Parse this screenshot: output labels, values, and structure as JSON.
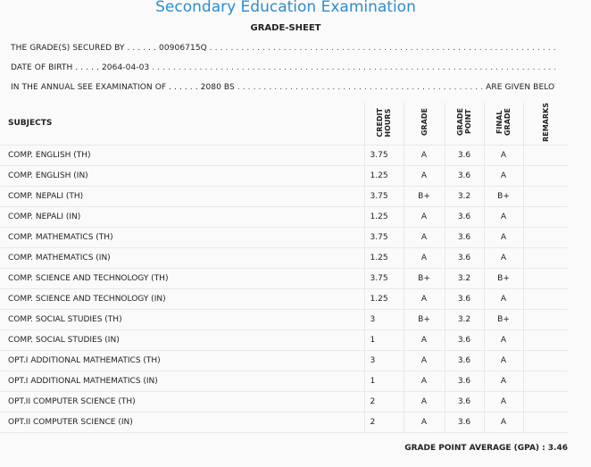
{
  "header": {
    "title": "Secondary Education Examination",
    "subtitle": "GRADE-SHEET"
  },
  "info": {
    "grade_label": "THE GRADE(S) SECURED BY . . . . . .",
    "grade_value": "00906715Q",
    "grade_dots": " . . . . . . . . . . . . . . . . . . . . . . . . . . . . . . . . . . . . . . . . . . . . . . . . . . . . . . . . . . . . . . . . . . . . . . . . . . . . . .",
    "dob_label": "DATE OF BIRTH . . . . .",
    "dob_value": "2064-04-03",
    "dob_dots": " . . . . . . . . . . . . . . . . . . . . . . . . . . . . . . . . . . . . . . . . . . . . . . . . . . . . . . . . . . . . . . . . . . . . . . . . . . . . . . . . . . . . . . .",
    "exam_label": "IN THE ANNUAL SEE EXAMINATION OF . . . . . .",
    "exam_value": "2080 BS",
    "exam_dots": " . . . . . . . . . . . . . . . . . . . . . . . . . . . . . . . . . . . . . . . . . . . . . . .",
    "exam_suffix": "ARE GIVEN BELOW . . ."
  },
  "table": {
    "headers": {
      "subjects": "SUBJECTS",
      "credit_hours": "CREDIT\nHOURS",
      "grade": "GRADE",
      "grade_point": "GRADE\nPOINT",
      "final_grade": "FINAL\nGRADE",
      "remarks": "REMARKS"
    },
    "rows": [
      {
        "subject": "COMP. ENGLISH (TH)",
        "credit": "3.75",
        "grade": "A",
        "point": "3.6",
        "final": "A",
        "remarks": ""
      },
      {
        "subject": "COMP. ENGLISH (IN)",
        "credit": "1.25",
        "grade": "A",
        "point": "3.6",
        "final": "A",
        "remarks": ""
      },
      {
        "subject": "COMP. NEPALI (TH)",
        "credit": "3.75",
        "grade": "B+",
        "point": "3.2",
        "final": "B+",
        "remarks": ""
      },
      {
        "subject": "COMP. NEPALI (IN)",
        "credit": "1.25",
        "grade": "A",
        "point": "3.6",
        "final": "A",
        "remarks": ""
      },
      {
        "subject": "COMP. MATHEMATICS (TH)",
        "credit": "3.75",
        "grade": "A",
        "point": "3.6",
        "final": "A",
        "remarks": ""
      },
      {
        "subject": "COMP. MATHEMATICS (IN)",
        "credit": "1.25",
        "grade": "A",
        "point": "3.6",
        "final": "A",
        "remarks": ""
      },
      {
        "subject": "COMP. SCIENCE AND TECHNOLOGY (TH)",
        "credit": "3.75",
        "grade": "B+",
        "point": "3.2",
        "final": "B+",
        "remarks": ""
      },
      {
        "subject": "COMP. SCIENCE AND TECHNOLOGY (IN)",
        "credit": "1.25",
        "grade": "A",
        "point": "3.6",
        "final": "A",
        "remarks": ""
      },
      {
        "subject": "COMP. SOCIAL STUDIES (TH)",
        "credit": "3",
        "grade": "B+",
        "point": "3.2",
        "final": "B+",
        "remarks": ""
      },
      {
        "subject": "COMP. SOCIAL STUDIES (IN)",
        "credit": "1",
        "grade": "A",
        "point": "3.6",
        "final": "A",
        "remarks": ""
      },
      {
        "subject": "OPT.I ADDITIONAL MATHEMATICS (TH)",
        "credit": "3",
        "grade": "A",
        "point": "3.6",
        "final": "A",
        "remarks": ""
      },
      {
        "subject": "OPT.I ADDITIONAL MATHEMATICS (IN)",
        "credit": "1",
        "grade": "A",
        "point": "3.6",
        "final": "A",
        "remarks": ""
      },
      {
        "subject": "OPT.II COMPUTER SCIENCE (TH)",
        "credit": "2",
        "grade": "A",
        "point": "3.6",
        "final": "A",
        "remarks": ""
      },
      {
        "subject": "OPT.II COMPUTER SCIENCE (IN)",
        "credit": "2",
        "grade": "A",
        "point": "3.6",
        "final": "A",
        "remarks": ""
      }
    ]
  },
  "gpa": {
    "label": "GRADE POINT AVERAGE (GPA) :",
    "value": "3.46"
  }
}
